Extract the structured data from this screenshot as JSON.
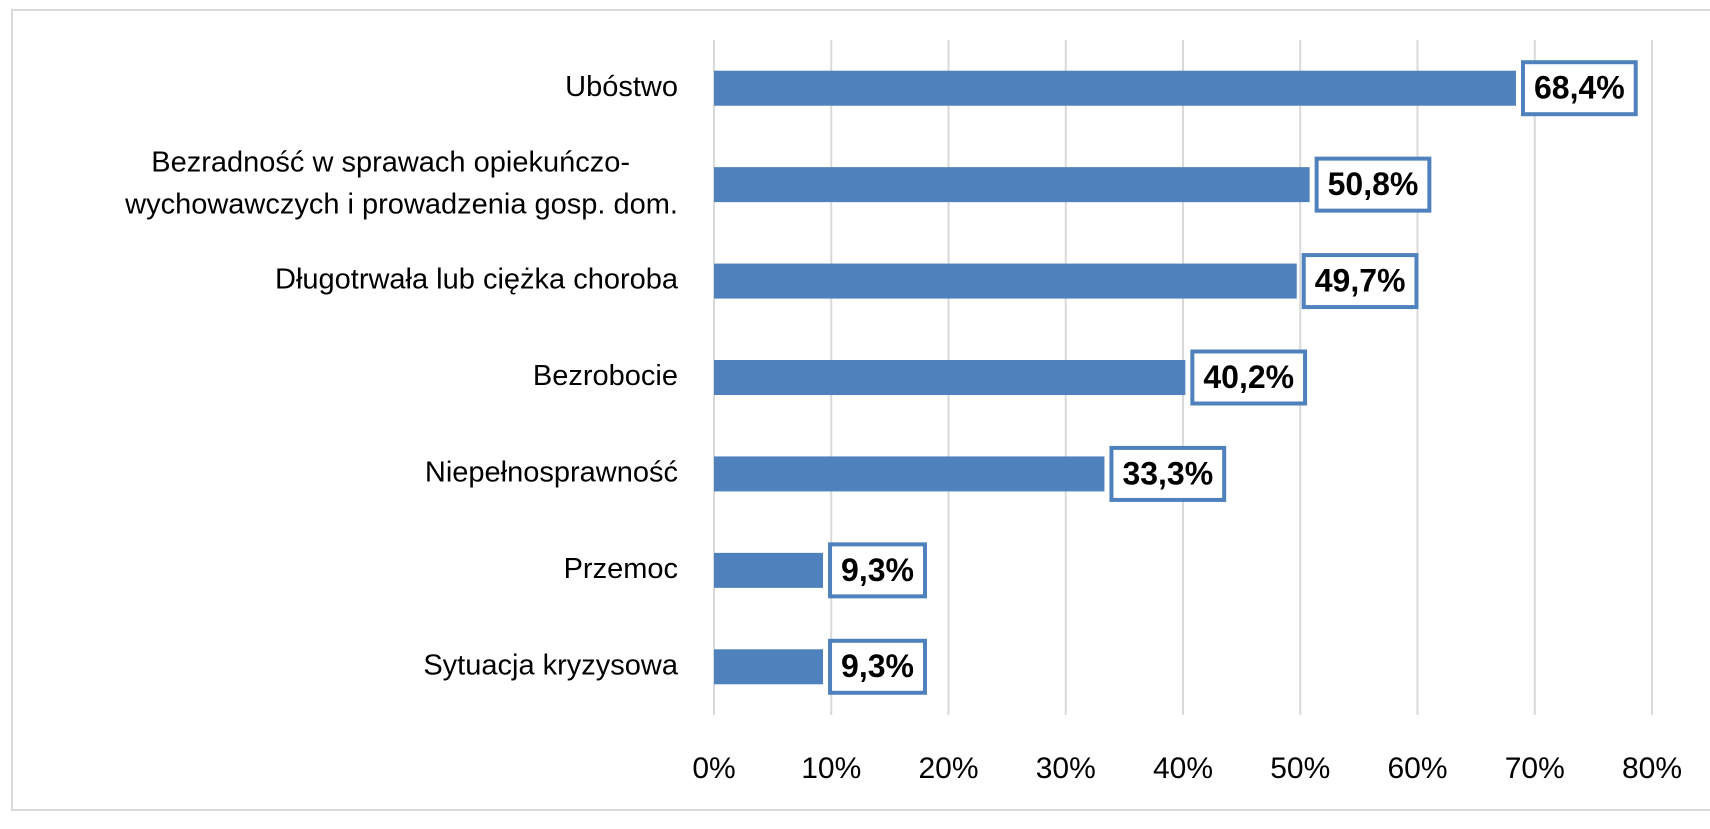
{
  "chart_data": {
    "type": "bar",
    "orientation": "horizontal",
    "categories": [
      "Ubóstwo",
      "Bezradność w sprawach opiekuńczo-\nwychowawczych i prowadzenia gosp. dom.",
      "Długotrwała lub ciężka choroba",
      "Bezrobocie",
      "Niepełnosprawność",
      "Przemoc",
      "Sytuacja kryzysowa"
    ],
    "values": [
      68.4,
      50.8,
      49.7,
      40.2,
      33.3,
      9.3,
      9.3
    ],
    "value_labels": [
      "68,4%",
      "50,8%",
      "49,7%",
      "40,2%",
      "33,3%",
      "9,3%",
      "9,3%"
    ],
    "color": "#4f81bd",
    "xlim": [
      0,
      80
    ],
    "xticks": [
      {
        "value": 0,
        "label": "0%"
      },
      {
        "value": 10,
        "label": "10%"
      },
      {
        "value": 20,
        "label": "20%"
      },
      {
        "value": 30,
        "label": "30%"
      },
      {
        "value": 40,
        "label": "40%"
      },
      {
        "value": 50,
        "label": "50%"
      },
      {
        "value": 60,
        "label": "60%"
      },
      {
        "value": 70,
        "label": "70%"
      },
      {
        "value": 80,
        "label": "80%"
      }
    ],
    "grid": true
  }
}
